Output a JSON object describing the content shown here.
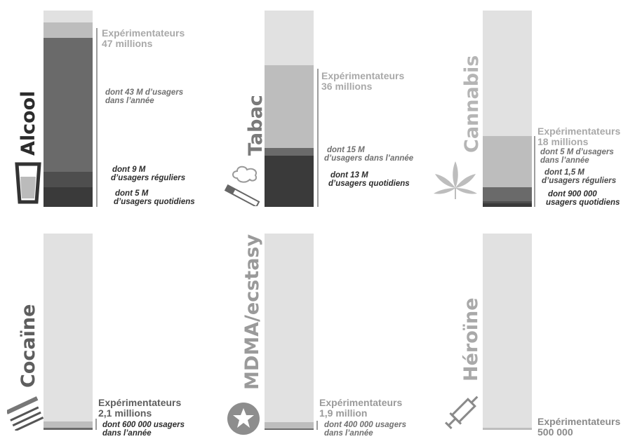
{
  "colors": {
    "track": "#e1e1e1",
    "experimenters": "#bdbdbd",
    "annual": "#6a6a6a",
    "regular": "#4e4e4e",
    "daily": "#3a3a3a",
    "text_light": "#a9a9a9",
    "text_mid": "#6f6f6f",
    "text_dark": "#2c2c2c"
  },
  "chart_data": [
    {
      "type": "bar",
      "category": "Alcool",
      "icon": "beer-glass-icon",
      "ylim": [
        0,
        50
      ],
      "unit": "millions",
      "values": {
        "experimenters": 47,
        "annual": 43,
        "regular": 9,
        "daily": 5
      },
      "labels": {
        "exp_title": "Expérimentateurs",
        "exp_value": "47 millions",
        "annual_1": "dont 43 M d’usagers",
        "annual_2": "dans l’année",
        "regular_1": "dont 9 M",
        "regular_2": "d’usagers réguliers",
        "daily_1": "dont 5 M",
        "daily_2": "d’usagers quotidiens"
      }
    },
    {
      "type": "bar",
      "category": "Tabac",
      "icon": "cigarette-icon",
      "ylim": [
        0,
        50
      ],
      "unit": "millions",
      "values": {
        "experimenters": 36,
        "annual": 15,
        "daily": 13
      },
      "labels": {
        "exp_title": "Expérimentateurs",
        "exp_value": "36 millions",
        "annual_1": "dont 15 M",
        "annual_2": "d’usagers dans l’année",
        "daily_1": "dont 13 M",
        "daily_2": "d’usagers quotidiens"
      }
    },
    {
      "type": "bar",
      "category": "Cannabis",
      "icon": "cannabis-leaf-icon",
      "ylim": [
        0,
        50
      ],
      "unit": "millions",
      "values": {
        "experimenters": 18,
        "annual": 5,
        "regular": 1.5,
        "daily": 0.9
      },
      "labels": {
        "exp_title": "Expérimentateurs",
        "exp_value": "18 millions",
        "annual_1": "dont 5 M d’usagers",
        "annual_2": "dans l’année",
        "regular_1": "dont 1,5 M",
        "regular_2": "d’usagers réguliers",
        "daily_1": "dont 900 000",
        "daily_2": "usagers quotidiens"
      }
    },
    {
      "type": "bar",
      "category": "Cocaïne",
      "icon": "cocaine-lines-icon",
      "ylim": [
        0,
        50
      ],
      "unit": "millions",
      "values": {
        "experimenters": 2.1,
        "annual": 0.6
      },
      "labels": {
        "exp_title": "Expérimentateurs",
        "exp_value": "2,1 millions",
        "annual_1": "dont 600 000 usagers",
        "annual_2": "dans l’année"
      }
    },
    {
      "type": "bar",
      "category": "MDMA/ecstasy",
      "icon": "star-pill-icon",
      "ylim": [
        0,
        50
      ],
      "unit": "millions",
      "values": {
        "experimenters": 1.9,
        "annual": 0.4
      },
      "labels": {
        "exp_title": "Expérimentateurs",
        "exp_value": "1,9 million",
        "annual_1": "dont 400 000 usagers",
        "annual_2": "dans l’année"
      }
    },
    {
      "type": "bar",
      "category": "Héroïne",
      "icon": "syringe-icon",
      "ylim": [
        0,
        50
      ],
      "unit": "millions",
      "values": {
        "experimenters": 0.5
      },
      "labels": {
        "exp_title": "Expérimentateurs",
        "exp_value": "500 000"
      }
    }
  ]
}
